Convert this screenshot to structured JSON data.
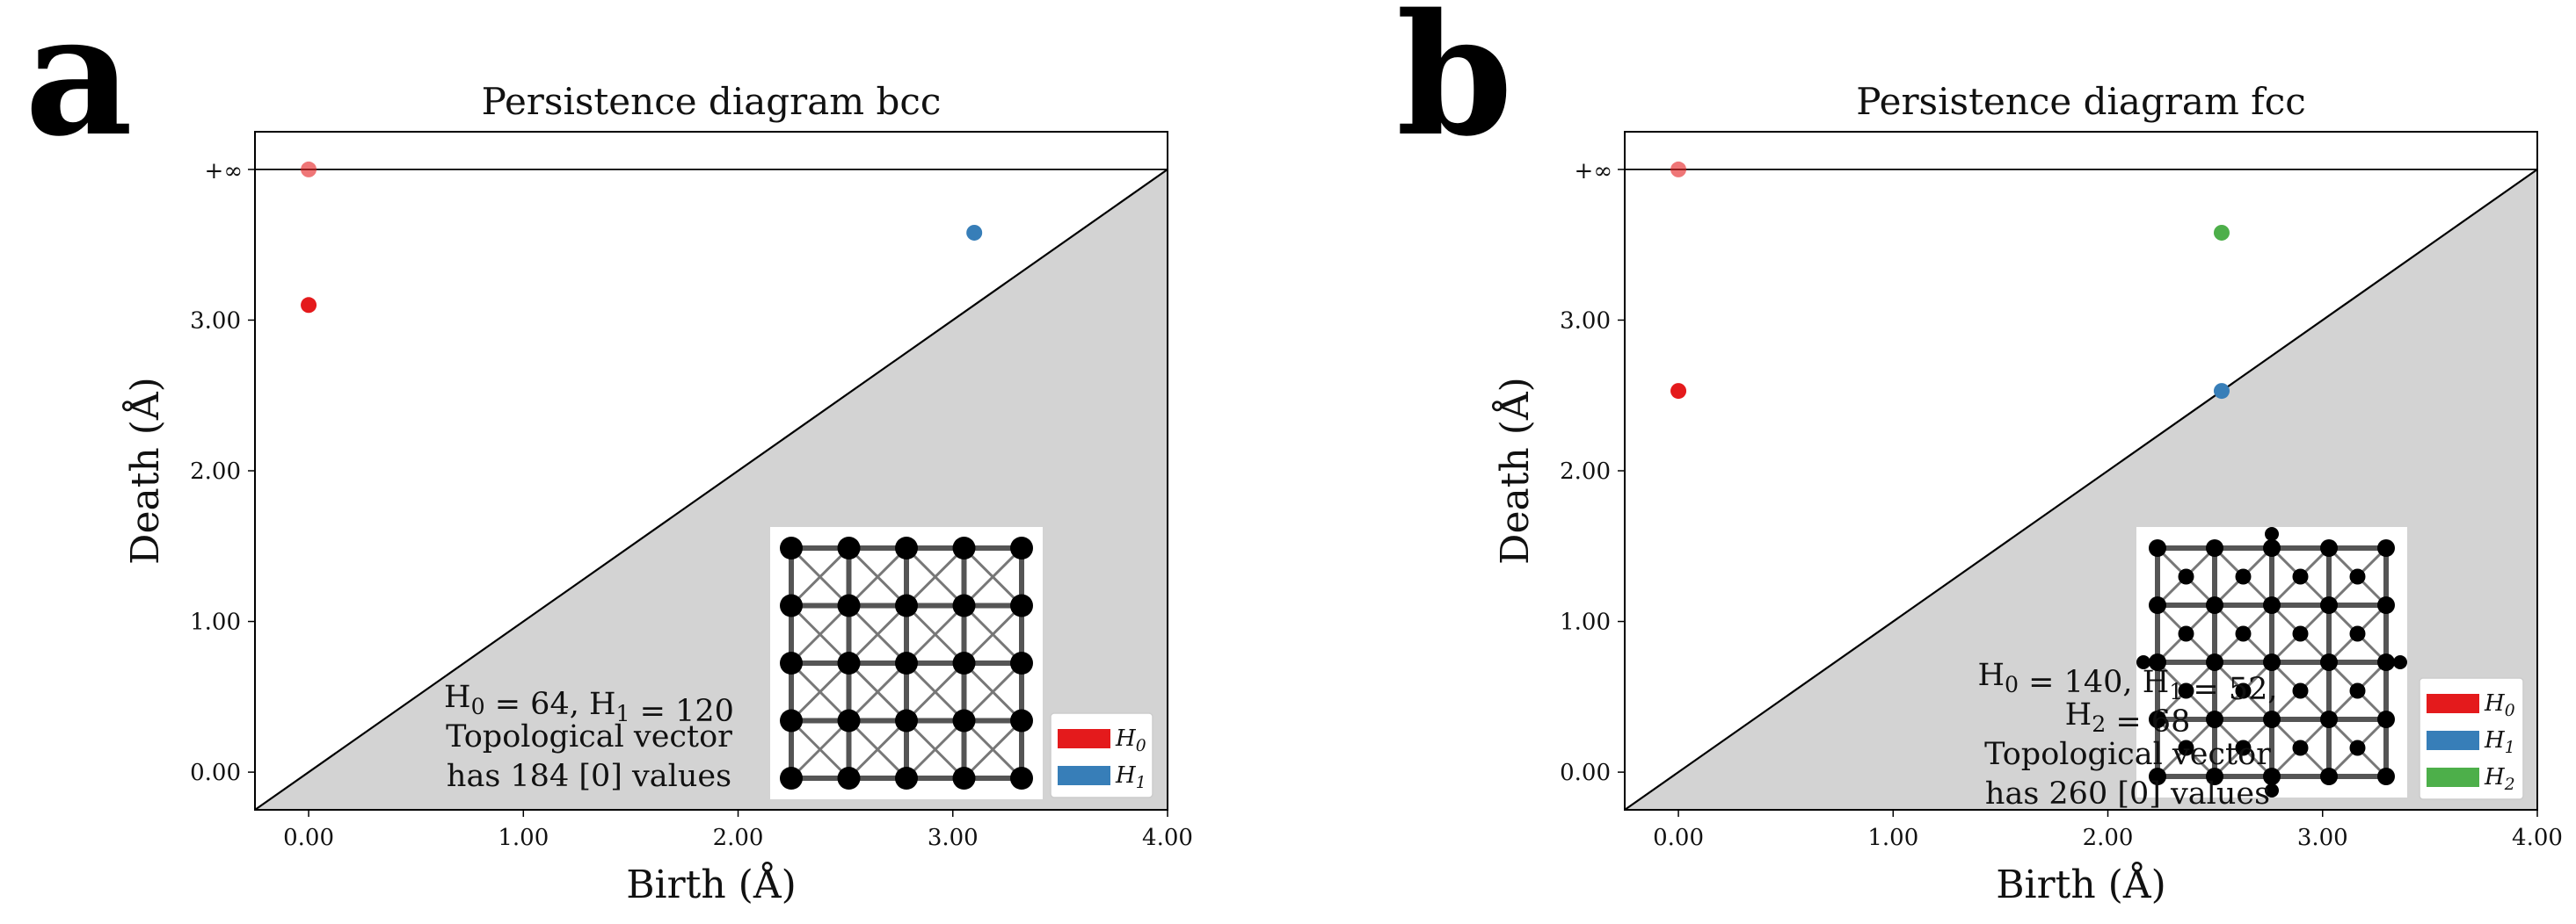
{
  "figure": {
    "panel_letters": [
      "a",
      "b"
    ]
  },
  "chart_data": [
    {
      "type": "scatter",
      "panel": "a",
      "title": "Persistence diagram bcc",
      "xlabel": "Birth (Å)",
      "ylabel": "Death (Å)",
      "xlim": [
        -0.25,
        4.0
      ],
      "ylim": [
        -0.25,
        4.25
      ],
      "infinity_value": 4.0,
      "infinity_label": "+∞",
      "xticks": [
        0,
        1,
        2,
        3,
        4
      ],
      "xtick_labels": [
        "0.00",
        "1.00",
        "2.00",
        "3.00",
        "4.00"
      ],
      "yticks": [
        0,
        1,
        2,
        3
      ],
      "ytick_labels": [
        "0.00",
        "1.00",
        "2.00",
        "3.00"
      ],
      "series": [
        {
          "name": "H0",
          "color": "#e41a1c",
          "points": [
            {
              "birth": 0,
              "death": "inf"
            },
            {
              "birth": 0,
              "death": 3.1
            }
          ]
        },
        {
          "name": "H1",
          "color": "#377eb8",
          "points": [
            {
              "birth": 3.1,
              "death": 3.58
            }
          ]
        }
      ],
      "legend": [
        "H0",
        "H1"
      ],
      "legend_placement": "lower-right",
      "annotation_lines": [
        "H0 = 64, H1 = 120",
        "Topological vector",
        "has 184 [0] values"
      ],
      "inset_structure": "bcc"
    },
    {
      "type": "scatter",
      "panel": "b",
      "title": "Persistence diagram fcc",
      "xlabel": "Birth (Å)",
      "ylabel": "Death (Å)",
      "xlim": [
        -0.25,
        4.0
      ],
      "ylim": [
        -0.25,
        4.25
      ],
      "infinity_value": 4.0,
      "infinity_label": "+∞",
      "xticks": [
        0,
        1,
        2,
        3,
        4
      ],
      "xtick_labels": [
        "0.00",
        "1.00",
        "2.00",
        "3.00",
        "4.00"
      ],
      "yticks": [
        0,
        1,
        2,
        3
      ],
      "ytick_labels": [
        "0.00",
        "1.00",
        "2.00",
        "3.00"
      ],
      "series": [
        {
          "name": "H0",
          "color": "#e41a1c",
          "points": [
            {
              "birth": 0,
              "death": "inf"
            },
            {
              "birth": 0,
              "death": 2.53
            }
          ]
        },
        {
          "name": "H1",
          "color": "#377eb8",
          "points": [
            {
              "birth": 2.53,
              "death": 2.53
            }
          ]
        },
        {
          "name": "H2",
          "color": "#4daf4a",
          "points": [
            {
              "birth": 2.53,
              "death": 3.58
            }
          ]
        }
      ],
      "legend": [
        "H0",
        "H1",
        "H2"
      ],
      "legend_placement": "lower-right",
      "annotation_lines": [
        "H0 = 140, H1 = 52,",
        "H2 = 68",
        "Topological vector",
        "has 260 [0] values"
      ],
      "inset_structure": "fcc"
    }
  ]
}
